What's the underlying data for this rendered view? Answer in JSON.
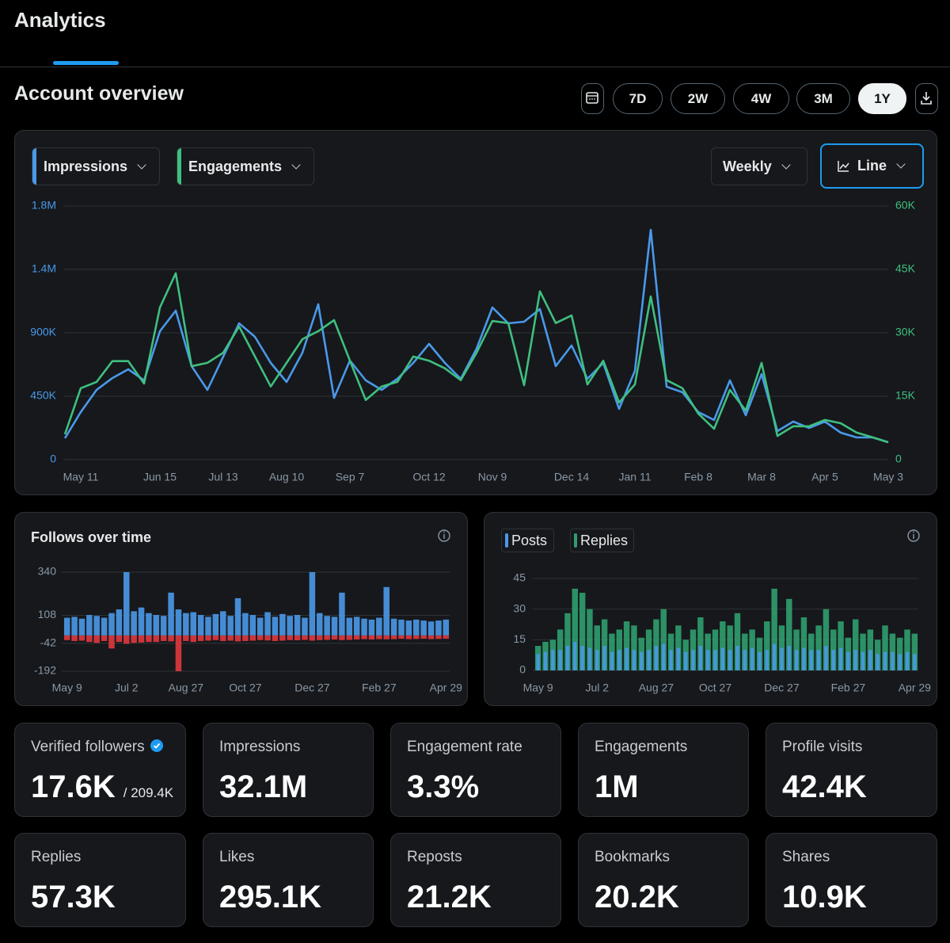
{
  "header": {
    "title": "Analytics"
  },
  "overview": {
    "title": "Account overview",
    "ranges": [
      "7D",
      "2W",
      "4W",
      "3M",
      "1Y"
    ],
    "interval": "Weekly",
    "chart_mode": "Line"
  },
  "chart_data": [
    {
      "type": "line",
      "categories": [
        null,
        "May 11",
        null,
        null,
        null,
        null,
        "Jun 15",
        null,
        null,
        null,
        "Jul 13",
        null,
        null,
        null,
        "Aug 10",
        null,
        null,
        null,
        "Sep 7",
        null,
        null,
        null,
        null,
        "Oct 12",
        null,
        null,
        null,
        "Nov 9",
        null,
        null,
        null,
        null,
        "Dec 14",
        null,
        null,
        null,
        "Jan 11",
        null,
        null,
        null,
        "Feb 8",
        null,
        null,
        null,
        "Mar 8",
        null,
        null,
        null,
        "Apr 5",
        null,
        null,
        null,
        "May 3"
      ],
      "series": [
        {
          "name": "Impressions",
          "color": "#4a99e9",
          "values": [
            152000,
            337500,
            495000,
            579000,
            641000,
            562500,
            911000,
            1057500,
            664000,
            495000,
            731000,
            967500,
            872000,
            686000,
            551000,
            759000,
            1102500,
            439000,
            703000,
            562500,
            495000,
            574000,
            686000,
            821000,
            686000,
            574000,
            787500,
            1080000,
            967500,
            979000,
            1069000,
            664000,
            810000,
            574000,
            686000,
            360000,
            630000,
            1631000,
            517500,
            478000,
            337500,
            281000,
            562500,
            315000,
            607500,
            202500,
            270000,
            225000,
            270000,
            191000,
            157500,
            157500,
            124000
          ]
        },
        {
          "name": "Engagements",
          "color": "#3fbf7f",
          "axis": "y2",
          "values": [
            6000,
            16900,
            18400,
            23300,
            23300,
            18000,
            36000,
            44100,
            22100,
            22900,
            25300,
            31500,
            24400,
            17300,
            22900,
            28500,
            30400,
            33000,
            23400,
            14100,
            17300,
            18400,
            24400,
            23400,
            21600,
            18800,
            25300,
            32800,
            32300,
            17600,
            39800,
            32300,
            34100,
            17800,
            23400,
            13500,
            17800,
            38600,
            18800,
            16900,
            10900,
            7300,
            16500,
            11600,
            22900,
            5600,
            7900,
            7900,
            9400,
            8600,
            6400,
            5300,
            4100
          ]
        }
      ],
      "ylim": [
        0,
        1800000
      ],
      "yticks": [
        {
          "value": 0,
          "label": "0"
        },
        {
          "value": 450000,
          "label": "450K"
        },
        {
          "value": 900000,
          "label": "900K"
        },
        {
          "value": 1350000,
          "label": "1.4M"
        },
        {
          "value": 1800000,
          "label": "1.8M"
        }
      ],
      "y2lim": [
        0,
        60000
      ],
      "y2ticks": [
        {
          "value": 0,
          "label": "0"
        },
        {
          "value": 15000,
          "label": "15K"
        },
        {
          "value": 30000,
          "label": "30K"
        },
        {
          "value": 45000,
          "label": "45K"
        },
        {
          "value": 60000,
          "label": "60K"
        }
      ],
      "grid": true
    },
    {
      "type": "bar",
      "title": "Follows over time",
      "categories": [
        "May 9",
        null,
        null,
        null,
        null,
        null,
        null,
        null,
        "Jul 2",
        null,
        null,
        null,
        null,
        null,
        null,
        null,
        "Aug 27",
        null,
        null,
        null,
        null,
        null,
        null,
        null,
        "Oct 27",
        null,
        null,
        null,
        null,
        null,
        null,
        null,
        null,
        "Dec 27",
        null,
        null,
        null,
        null,
        null,
        null,
        null,
        null,
        "Feb 27",
        null,
        null,
        null,
        null,
        null,
        null,
        null,
        null,
        "Apr 29"
      ],
      "series": [
        {
          "color": "#4a99e9",
          "values": [
            95,
            100,
            90,
            110,
            105,
            95,
            120,
            140,
            340,
            130,
            150,
            120,
            110,
            105,
            230,
            140,
            120,
            125,
            110,
            100,
            115,
            130,
            105,
            200,
            120,
            110,
            95,
            125,
            100,
            115,
            105,
            110,
            95,
            340,
            120,
            105,
            100,
            230,
            95,
            100,
            90,
            85,
            95,
            260,
            90,
            85,
            80,
            85,
            80,
            75,
            80,
            85
          ]
        },
        {
          "color": "#e0383e",
          "values": [
            -25,
            -30,
            -28,
            -35,
            -40,
            -30,
            -70,
            -35,
            -45,
            -40,
            -38,
            -35,
            -35,
            -30,
            -32,
            -192,
            -30,
            -35,
            -30,
            -28,
            -25,
            -30,
            -28,
            -32,
            -30,
            -28,
            -25,
            -27,
            -30,
            -28,
            -25,
            -26,
            -24,
            -28,
            -25,
            -24,
            -22,
            -25,
            -24,
            -22,
            -20,
            -22,
            -20,
            -21,
            -20,
            -18,
            -20,
            -19,
            -18,
            -20,
            -19,
            -18
          ]
        }
      ],
      "ylim": [
        -192,
        340
      ],
      "yticks": [
        340,
        108,
        -42,
        -192
      ],
      "grid": true
    },
    {
      "type": "bar",
      "categories": [
        "May 9",
        null,
        null,
        null,
        null,
        null,
        null,
        null,
        "Jul 2",
        null,
        null,
        null,
        null,
        null,
        null,
        null,
        "Aug 27",
        null,
        null,
        null,
        null,
        null,
        null,
        null,
        "Oct 27",
        null,
        null,
        null,
        null,
        null,
        null,
        null,
        null,
        "Dec 27",
        null,
        null,
        null,
        null,
        null,
        null,
        null,
        null,
        "Feb 27",
        null,
        null,
        null,
        null,
        null,
        null,
        null,
        null,
        "Apr 29"
      ],
      "series": [
        {
          "name": "Replies",
          "color": "#2f9e6e",
          "values": [
            12,
            14,
            15,
            20,
            28,
            40,
            38,
            30,
            22,
            25,
            18,
            20,
            24,
            22,
            16,
            20,
            25,
            30,
            18,
            22,
            15,
            20,
            26,
            18,
            20,
            24,
            22,
            28,
            18,
            20,
            16,
            24,
            40,
            22,
            35,
            20,
            26,
            18,
            22,
            30,
            20,
            24,
            16,
            25,
            18,
            20,
            15,
            22,
            18,
            16,
            20,
            18
          ]
        },
        {
          "name": "Posts",
          "color": "#4a99e9",
          "values": [
            8,
            9,
            10,
            10,
            12,
            14,
            12,
            11,
            10,
            12,
            9,
            10,
            11,
            10,
            9,
            10,
            12,
            13,
            10,
            11,
            9,
            10,
            12,
            10,
            10,
            11,
            10,
            12,
            10,
            11,
            9,
            10,
            13,
            11,
            12,
            10,
            11,
            10,
            10,
            12,
            10,
            11,
            9,
            10,
            9,
            10,
            8,
            9,
            9,
            8,
            9,
            8
          ]
        }
      ],
      "ylim": [
        0,
        45
      ],
      "yticks": [
        0,
        15,
        30,
        45
      ],
      "grid": true
    }
  ],
  "stats": [
    {
      "label": "Verified followers",
      "value": "17.6K",
      "total": "/ 209.4K"
    },
    {
      "label": "Impressions",
      "value": "32.1M"
    },
    {
      "label": "Engagement rate",
      "value": "3.3%"
    },
    {
      "label": "Engagements",
      "value": "1M"
    },
    {
      "label": "Profile visits",
      "value": "42.4K"
    },
    {
      "label": "Replies",
      "value": "57.3K"
    },
    {
      "label": "Likes",
      "value": "295.1K"
    },
    {
      "label": "Reposts",
      "value": "21.2K"
    },
    {
      "label": "Bookmarks",
      "value": "20.2K"
    },
    {
      "label": "Shares",
      "value": "10.9K"
    }
  ]
}
